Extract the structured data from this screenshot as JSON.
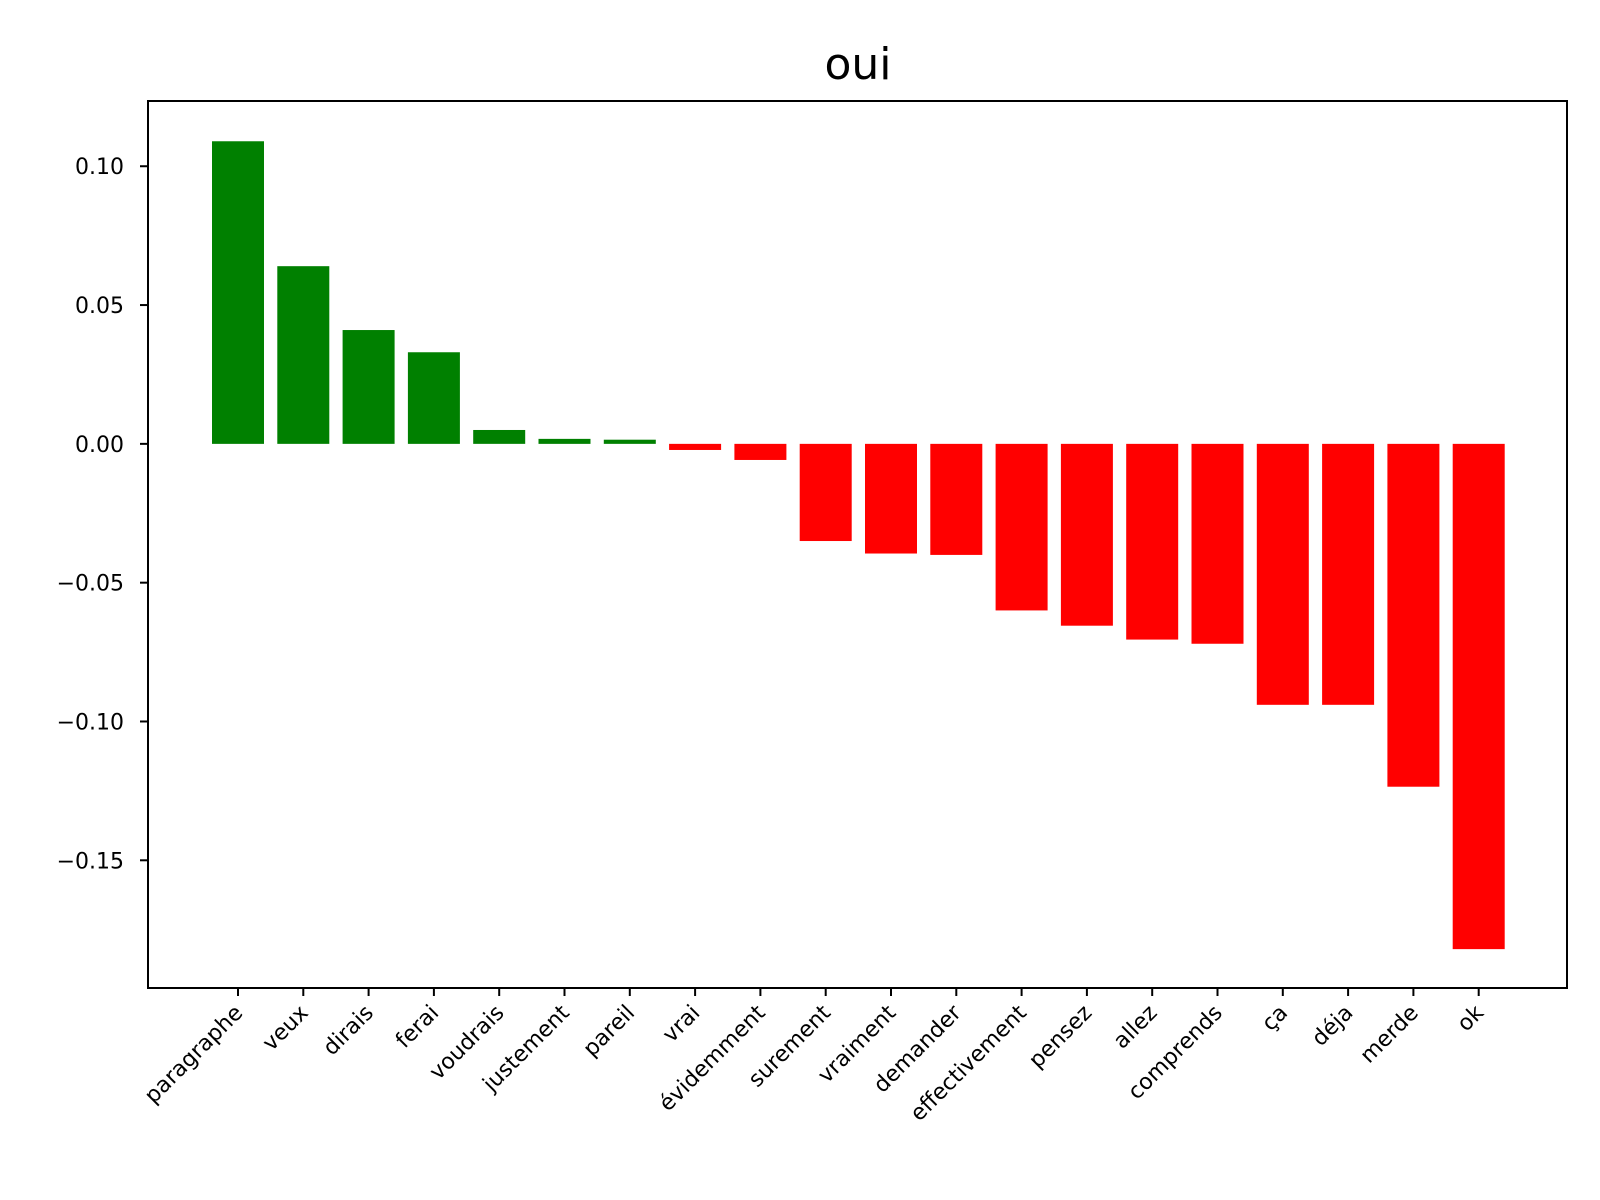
{
  "chart_data": {
    "type": "bar",
    "title": "oui",
    "xlabel": "",
    "ylabel": "",
    "categories": [
      "paragraphe",
      "veux",
      "dirais",
      "ferai",
      "voudrais",
      "justement",
      "pareil",
      "vrai",
      "évidemment",
      "surement",
      "vraiment",
      "demander",
      "effectivement",
      "pensez",
      "allez",
      "comprends",
      "ça",
      "déja",
      "merde",
      "ok"
    ],
    "values": [
      0.109,
      0.064,
      0.041,
      0.033,
      0.005,
      0.0018,
      0.0015,
      -0.0022,
      -0.0058,
      -0.035,
      -0.0395,
      -0.04,
      -0.06,
      -0.0655,
      -0.0705,
      -0.072,
      -0.094,
      -0.094,
      -0.1235,
      -0.182
    ],
    "ylim": [
      -0.196,
      0.1235
    ],
    "yticks": [
      0.1,
      0.05,
      0.0,
      -0.05,
      -0.1,
      -0.15
    ],
    "ytick_labels": [
      "0.10",
      "0.05",
      "0.00",
      "−0.05",
      "−0.10",
      "−0.15"
    ],
    "colors": {
      "positive": "#008000",
      "negative": "#ff0000",
      "axis": "#000000"
    },
    "grid": false,
    "legend": "none"
  }
}
